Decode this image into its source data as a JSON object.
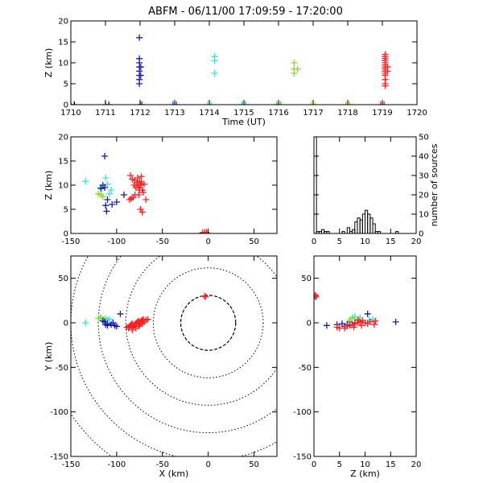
{
  "title": "ABFM - 06/11/00 17:09:59 - 17:20:00",
  "chart_data": [
    {
      "id": "time-height",
      "type": "scatter",
      "xlabel": "Time (UT)",
      "ylabel": "Z (km)",
      "xlim": [
        1710,
        1720
      ],
      "ylim": [
        0,
        20
      ],
      "xticks": [
        "1710",
        "1711",
        "1712",
        "1713",
        "1714",
        "1715",
        "1716",
        "1717",
        "1718",
        "1719",
        "1720"
      ],
      "yticks": [
        "0",
        "5",
        "10",
        "15",
        "20"
      ],
      "series": [
        {
          "color": "#000000",
          "points": [
            [
              1710.0,
              0
            ],
            [
              1710.1,
              0
            ]
          ]
        },
        {
          "color": "#5a00a0",
          "points": [
            [
              1711.0,
              0
            ],
            [
              1711.1,
              0
            ]
          ]
        },
        {
          "color": "#1a1ab4",
          "points": [
            [
              1712.0,
              0
            ],
            [
              1712.05,
              0
            ],
            [
              1711.98,
              16
            ],
            [
              1711.98,
              11
            ],
            [
              1711.98,
              10
            ],
            [
              1711.98,
              9
            ],
            [
              1711.98,
              8
            ],
            [
              1711.98,
              7
            ],
            [
              1711.98,
              6
            ],
            [
              1711.98,
              5
            ],
            [
              1712.02,
              7
            ],
            [
              1712.02,
              9
            ]
          ]
        },
        {
          "color": "#0050e6",
          "points": [
            [
              1712.95,
              0
            ],
            [
              1713.05,
              0
            ]
          ]
        },
        {
          "color": "#40e0e0",
          "points": [
            [
              1713.95,
              0
            ],
            [
              1714.05,
              0
            ],
            [
              1714.15,
              11.5
            ],
            [
              1714.15,
              10.5
            ],
            [
              1714.15,
              7.5
            ]
          ]
        },
        {
          "color": "#00c8a0",
          "points": [
            [
              1714.95,
              0
            ],
            [
              1715.05,
              0
            ]
          ]
        },
        {
          "color": "#20d020",
          "points": [
            [
              1715.95,
              0
            ],
            [
              1716.05,
              0
            ]
          ]
        },
        {
          "color": "#80e020",
          "points": [
            [
              1716.45,
              10
            ],
            [
              1716.45,
              8.5
            ],
            [
              1716.45,
              7.5
            ],
            [
              1716.55,
              8.5
            ]
          ]
        },
        {
          "color": "#e0e000",
          "points": [
            [
              1716.95,
              0
            ],
            [
              1717.05,
              0
            ]
          ]
        },
        {
          "color": "#ffa000",
          "points": [
            [
              1717.95,
              0
            ],
            [
              1718.05,
              0
            ]
          ]
        },
        {
          "color": "#ff2020",
          "points": [
            [
              1718.95,
              0
            ],
            [
              1719.05,
              0
            ],
            [
              1719.08,
              12
            ],
            [
              1719.08,
              11.5
            ],
            [
              1719.08,
              11
            ],
            [
              1719.08,
              10.5
            ],
            [
              1719.08,
              10
            ],
            [
              1719.08,
              9.5
            ],
            [
              1719.08,
              9
            ],
            [
              1719.08,
              8.5
            ],
            [
              1719.08,
              8
            ],
            [
              1719.08,
              7.5
            ],
            [
              1719.08,
              7
            ],
            [
              1719.08,
              6
            ],
            [
              1719.08,
              5
            ],
            [
              1719.08,
              4.5
            ],
            [
              1719.15,
              9
            ],
            [
              1719.15,
              8
            ]
          ]
        }
      ]
    },
    {
      "id": "xz-plan",
      "type": "scatter",
      "xlabel": "",
      "ylabel": "Z (km)",
      "xlim": [
        -150,
        75
      ],
      "ylim": [
        0,
        20
      ],
      "xticks": [
        "-150",
        "-100",
        "-50",
        "0",
        "50"
      ],
      "yticks": [
        "0",
        "5",
        "10",
        "15",
        "20"
      ],
      "series": [
        {
          "color": "#40e0e0",
          "points": [
            [
              -134,
              10.8
            ],
            [
              -118,
              9.5
            ],
            [
              -112,
              11.5
            ],
            [
              -110,
              10.2
            ],
            [
              -108,
              8.2
            ],
            [
              -106,
              9.0
            ]
          ]
        },
        {
          "color": "#80e020",
          "points": [
            [
              -117,
              8.0
            ],
            [
              -115,
              7.6
            ],
            [
              -120,
              8.2
            ]
          ]
        },
        {
          "color": "#1a1ab4",
          "points": [
            [
              -113,
              16
            ],
            [
              -115,
              10
            ],
            [
              -117,
              9.3
            ],
            [
              -113,
              9.5
            ],
            [
              -110,
              7.0
            ],
            [
              -105,
              6.0
            ],
            [
              -100,
              6.5
            ],
            [
              -112,
              5.8
            ],
            [
              -111,
              4.6
            ],
            [
              -92,
              8.0
            ]
          ]
        },
        {
          "color": "#ff2020",
          "points": [
            [
              -85,
              12
            ],
            [
              -83,
              11.2
            ],
            [
              -80,
              11
            ],
            [
              -78,
              10.5
            ],
            [
              -77,
              10
            ],
            [
              -76,
              9.5
            ],
            [
              -75,
              9.0
            ],
            [
              -74,
              10
            ],
            [
              -73,
              10.5
            ],
            [
              -72,
              9
            ],
            [
              -71,
              8.5
            ],
            [
              -76,
              8.0
            ],
            [
              -80,
              8.0
            ],
            [
              -82,
              7.5
            ],
            [
              -84,
              7.2
            ],
            [
              -86,
              7.0
            ],
            [
              -68,
              7.0
            ],
            [
              -74,
              5.0
            ],
            [
              -72,
              4.4
            ],
            [
              -79,
              9.5
            ],
            [
              -77,
              11.5
            ],
            [
              -73,
              11.8
            ],
            [
              -81,
              10.0
            ],
            [
              -75,
              10.8
            ],
            [
              -70,
              10.2
            ],
            [
              -4,
              0.2
            ],
            [
              -6,
              0.2
            ],
            [
              -2,
              0.2
            ]
          ]
        }
      ]
    },
    {
      "id": "z-histogram",
      "type": "bar",
      "xlabel": "",
      "ylabel": "number of sources",
      "xlim": [
        0,
        20
      ],
      "ylim": [
        0,
        50
      ],
      "xticks": [
        "0",
        "5",
        "10",
        "15",
        "20"
      ],
      "yticks": [
        "0",
        "10",
        "20",
        "30",
        "40",
        "50"
      ],
      "bin_width": 0.5,
      "bin_edges_start": 0,
      "values": [
        50,
        1,
        1,
        2,
        1,
        1,
        0,
        0,
        0,
        0,
        0,
        1,
        0,
        3,
        1,
        2,
        6,
        8,
        7,
        10,
        12,
        10,
        8,
        5,
        1,
        1,
        0,
        0,
        0,
        0,
        0,
        0,
        1,
        0,
        0,
        0,
        0,
        0,
        0,
        0
      ]
    },
    {
      "id": "xy-plan",
      "type": "scatter",
      "xlabel": "X (km)",
      "ylabel": "Y (km)",
      "xlim": [
        -150,
        75
      ],
      "ylim": [
        -150,
        75
      ],
      "xticks": [
        "-150",
        "-100",
        "-50",
        "0",
        "50"
      ],
      "yticks": [
        "-150",
        "-100",
        "-50",
        "0",
        "50"
      ],
      "range_rings_km": [
        30,
        60,
        90,
        120,
        150,
        180
      ],
      "series": [
        {
          "color": "#40e0e0",
          "points": [
            [
              -134,
              0
            ],
            [
              -118,
              5
            ],
            [
              -112,
              5
            ],
            [
              -110,
              3
            ],
            [
              -108,
              4
            ]
          ]
        },
        {
          "color": "#80e020",
          "points": [
            [
              -117,
              6
            ],
            [
              -114,
              4
            ],
            [
              -120,
              5
            ]
          ]
        },
        {
          "color": "#1a1ab4",
          "points": [
            [
              -113,
              1
            ],
            [
              -115,
              2
            ],
            [
              -112,
              -2
            ],
            [
              -110,
              -1
            ],
            [
              -106,
              -2
            ],
            [
              -102,
              -3
            ],
            [
              -100,
              -4
            ],
            [
              -96,
              10
            ],
            [
              -104,
              0
            ],
            [
              -110,
              -3
            ]
          ]
        },
        {
          "color": "#ff2020",
          "points": [
            [
              -89,
              -5
            ],
            [
              -87,
              -6
            ],
            [
              -86,
              -4
            ],
            [
              -85,
              -3
            ],
            [
              -84,
              -2
            ],
            [
              -83,
              -1
            ],
            [
              -82,
              -4
            ],
            [
              -81,
              -3
            ],
            [
              -80,
              -2
            ],
            [
              -79,
              -1
            ],
            [
              -78,
              0
            ],
            [
              -77,
              1
            ],
            [
              -76,
              2
            ],
            [
              -75,
              -2
            ],
            [
              -74,
              0
            ],
            [
              -73,
              2
            ],
            [
              -72,
              3
            ],
            [
              -71,
              4
            ],
            [
              -70,
              1
            ],
            [
              -68,
              3
            ],
            [
              -66,
              4
            ],
            [
              -83,
              -8
            ],
            [
              -79,
              -6
            ],
            [
              -76,
              -4
            ],
            [
              -72,
              -1
            ],
            [
              -4,
              30
            ],
            [
              -3,
              29
            ]
          ]
        }
      ]
    },
    {
      "id": "zy-plan",
      "type": "scatter",
      "xlabel": "Z (km)",
      "ylabel": "",
      "xlim": [
        0,
        20
      ],
      "ylim": [
        -150,
        75
      ],
      "xticks": [
        "0",
        "5",
        "10",
        "15",
        "20"
      ],
      "yticks": [
        "-150",
        "-100",
        "-50",
        "0",
        "50"
      ],
      "series": [
        {
          "color": "#ff2020",
          "points": [
            [
              0.2,
              30
            ],
            [
              0.4,
              29
            ],
            [
              0.3,
              31
            ]
          ]
        },
        {
          "color": "#1a1ab4",
          "points": [
            [
              2.5,
              -3
            ],
            [
              4.5,
              -2
            ],
            [
              5.5,
              -1
            ],
            [
              6,
              -4
            ],
            [
              7,
              1
            ],
            [
              8,
              0
            ],
            [
              10.5,
              10
            ],
            [
              16,
              1
            ],
            [
              6.5,
              -2
            ]
          ]
        },
        {
          "color": "#40e0e0",
          "points": [
            [
              7.5,
              5
            ],
            [
              8,
              7
            ],
            [
              9,
              6
            ],
            [
              11.5,
              4
            ],
            [
              10.8,
              3
            ]
          ]
        },
        {
          "color": "#80e020",
          "points": [
            [
              7.5,
              6
            ],
            [
              8.5,
              4
            ],
            [
              7,
              3
            ]
          ]
        },
        {
          "color": "#ff2020",
          "points": [
            [
              6,
              -6
            ],
            [
              6.5,
              -4
            ],
            [
              7,
              -3
            ],
            [
              7.5,
              -2
            ],
            [
              8,
              -1
            ],
            [
              8.5,
              0
            ],
            [
              9,
              1
            ],
            [
              9.5,
              2
            ],
            [
              10,
              0
            ],
            [
              10.5,
              -1
            ],
            [
              11,
              1
            ],
            [
              8.7,
              3
            ],
            [
              9.3,
              -3
            ],
            [
              7.8,
              -5
            ],
            [
              12,
              2
            ],
            [
              11.8,
              -2
            ],
            [
              5,
              -6
            ],
            [
              4.5,
              -5
            ]
          ]
        }
      ]
    }
  ]
}
